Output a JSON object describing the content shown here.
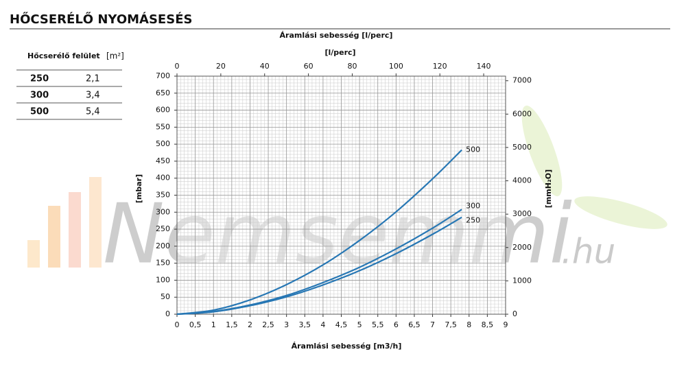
{
  "header": {
    "title": "HŐCSERÉLŐ NYOMÁSESÉS"
  },
  "table": {
    "headers": [
      "Hőcserélő felület",
      "[m²]"
    ],
    "rows": [
      [
        "250",
        "2,1"
      ],
      [
        "300",
        "3,4"
      ],
      [
        "500",
        "5,4"
      ]
    ]
  },
  "watermark": {
    "text": "Nemsemmi",
    "suffix": ".hu"
  },
  "chart_data": {
    "type": "line",
    "title": "Áramlási sebesség [l/perc]",
    "x2_label": "[l/perc]",
    "x_label": "Áramlási sebesség [m3/h]",
    "y_label": "[mbar]",
    "y2_label": "[mmH₂O]",
    "x": [
      0,
      1,
      2,
      3,
      4,
      5,
      6,
      7,
      7.8
    ],
    "series": [
      {
        "name": "250",
        "color": "#2777b4",
        "values": [
          0,
          7,
          25,
          51,
          86,
          128,
          178,
          235,
          285
        ]
      },
      {
        "name": "300",
        "color": "#2777b4",
        "values": [
          0,
          8,
          27,
          55,
          93,
          138,
          192,
          253,
          308
        ]
      },
      {
        "name": "500",
        "color": "#2777b4",
        "values": [
          0,
          12,
          42,
          87,
          145,
          217,
          301,
          398,
          483
        ]
      }
    ],
    "xlim": [
      0,
      9
    ],
    "xticks": [
      0,
      {
        "value": 0.5,
        "label": "0,5"
      },
      1,
      {
        "value": 1.5,
        "label": "1,5"
      },
      2,
      {
        "value": 2.5,
        "label": "2,5"
      },
      3,
      {
        "value": 3.5,
        "label": "3,5"
      },
      4,
      {
        "value": 4.5,
        "label": "4,5"
      },
      5,
      {
        "value": 5.5,
        "label": "5,5"
      },
      6,
      {
        "value": 6.5,
        "label": "6,5"
      },
      7,
      {
        "value": 7.5,
        "label": "7,5"
      },
      8,
      {
        "value": 8.5,
        "label": "8,5"
      },
      9
    ],
    "x2lim": [
      0,
      150
    ],
    "x2ticks": [
      0,
      20,
      40,
      60,
      80,
      100,
      120,
      140
    ],
    "ylim": [
      0,
      700
    ],
    "yticks": [
      0,
      50,
      100,
      150,
      200,
      250,
      300,
      350,
      400,
      450,
      500,
      550,
      600,
      650,
      700
    ],
    "y2lim": [
      0,
      7138
    ],
    "y2ticks": [
      0,
      1000,
      2000,
      3000,
      4000,
      5000,
      6000,
      7000
    ],
    "grid": true
  }
}
